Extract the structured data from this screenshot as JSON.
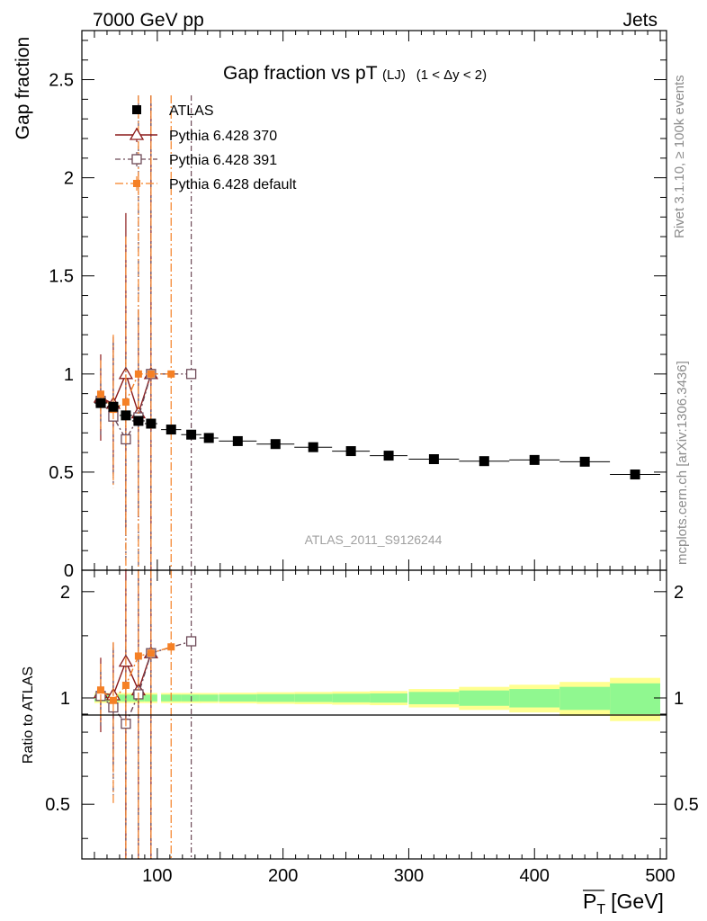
{
  "header": {
    "left": "7000 GeV pp",
    "right": "Jets"
  },
  "side_texts": {
    "rivet": "Rivet 3.1.10, ≥ 100k events",
    "mcplots": "mcplots.cern.ch [arXiv:1306.3436]"
  },
  "colors": {
    "atlas": "#000000",
    "p370": "#8b1a1a",
    "p391": "#6e4a58",
    "pdefault": "#f58025",
    "band_inner": "#90f890",
    "band_outer": "#ffff90"
  },
  "chart_data": {
    "type": "scatter",
    "title": "Gap fraction vs pT",
    "title_sub": "(LJ)",
    "title_cut": "(1 < Δy < 2)",
    "analysis_label": "ATLAS_2011_S9126244",
    "xlabel": "P_T [GeV]",
    "xlabel_main": "P",
    "xlabel_sub": "T",
    "xlabel_unit": "[GeV]",
    "ylabel": "Gap fraction",
    "ratio_ylabel": "Ratio to ATLAS",
    "xlim": [
      40,
      505
    ],
    "ylim": [
      0,
      2.75
    ],
    "ratio_ylim": [
      0.35,
      2.3
    ],
    "xticks": [
      100,
      200,
      300,
      400,
      500
    ],
    "xtick_labels": [
      "100",
      "200",
      "300",
      "400",
      "500"
    ],
    "yticks": [
      0,
      0.5,
      1,
      1.5,
      2,
      2.5
    ],
    "ytick_labels": [
      "0",
      "0.5",
      "1",
      "1.5",
      "2",
      "2.5"
    ],
    "ratio_yticks": [
      0.5,
      1,
      2
    ],
    "ratio_ytick_labels": [
      "0.5",
      "1",
      "2"
    ],
    "legend_position": "top-left",
    "legend": [
      "ATLAS",
      "Pythia 6.428 370",
      "Pythia 6.428 391",
      "Pythia 6.428 default"
    ],
    "series": [
      {
        "name": "ATLAS",
        "marker": "filled-square",
        "x": [
          55,
          65,
          75,
          85,
          95,
          111,
          127,
          141,
          164,
          194,
          224,
          254,
          284,
          320,
          360,
          400,
          440,
          480
        ],
        "xerr": [
          5,
          5,
          5,
          5,
          5,
          8,
          8,
          7.5,
          15,
          15,
          15,
          15,
          15,
          20,
          20,
          20,
          20,
          20
        ],
        "y": [
          0.852,
          0.833,
          0.789,
          0.761,
          0.747,
          0.717,
          0.691,
          0.674,
          0.658,
          0.643,
          0.627,
          0.607,
          0.584,
          0.566,
          0.556,
          0.562,
          0.553,
          0.488
        ],
        "band_inner": [
          0.022,
          0.022,
          0.022,
          0.022,
          0.022,
          0.022,
          0.022,
          0.022,
          0.023,
          0.025,
          0.026,
          0.028,
          0.03,
          0.04,
          0.05,
          0.06,
          0.075,
          0.1
        ],
        "band_outer": [
          0.033,
          0.033,
          0.033,
          0.033,
          0.033,
          0.033,
          0.033,
          0.033,
          0.035,
          0.038,
          0.04,
          0.043,
          0.046,
          0.06,
          0.075,
          0.09,
          0.11,
          0.14
        ]
      },
      {
        "name": "Pythia 6.428 370",
        "marker": "open-triangle",
        "dash": "",
        "x": [
          55,
          65,
          75,
          85,
          95
        ],
        "y": [
          0.88,
          0.848,
          1.0,
          0.8,
          1.0
        ],
        "ylo": [
          0.66,
          0.48,
          0.2,
          0.27,
          0.0
        ],
        "yhi": [
          1.1,
          1.19,
          1.82,
          1.33,
          2.42
        ]
      },
      {
        "name": "Pythia 6.428 391",
        "marker": "open-square",
        "dash": "6,3,2,3",
        "x": [
          55,
          65,
          75,
          85,
          95,
          127
        ],
        "y": [
          0.863,
          0.783,
          0.667,
          0.779,
          1.0,
          1.0
        ],
        "ylo": [
          0.69,
          0.44,
          0.05,
          0.0,
          0.0,
          0.0
        ],
        "yhi": [
          1.03,
          1.16,
          1.1,
          2.42,
          2.42,
          2.42
        ]
      },
      {
        "name": "Pythia 6.428 default",
        "marker": "filled-square-small",
        "dash": "9,3,2,3",
        "x": [
          55,
          65,
          75,
          85,
          95,
          111
        ],
        "y": [
          0.897,
          0.82,
          0.857,
          1.0,
          1.0,
          1.0
        ],
        "ylo": [
          0.72,
          0.42,
          0.0,
          0.0,
          0.0,
          0.0
        ],
        "yhi": [
          1.07,
          1.2,
          1.7,
          2.42,
          2.42,
          2.42
        ]
      }
    ],
    "ratio_series": [
      {
        "name": "Pythia 6.428 370",
        "x": [
          55,
          65,
          75,
          85,
          95
        ],
        "y": [
          1.033,
          1.018,
          1.267,
          1.051,
          1.339
        ],
        "ylo": [
          0.8,
          0.62,
          0.25,
          0.35,
          0.0
        ],
        "yhi": [
          1.3,
          1.43,
          2.35,
          2.35,
          2.35
        ]
      },
      {
        "name": "Pythia 6.428 391",
        "x": [
          55,
          65,
          75,
          85,
          95,
          127
        ],
        "y": [
          1.013,
          0.94,
          0.845,
          1.024,
          1.339,
          1.447
        ],
        "ylo": [
          0.82,
          0.53,
          0.0,
          0.0,
          0.0,
          0.0
        ],
        "yhi": [
          1.2,
          1.39,
          1.4,
          2.35,
          2.35,
          2.35
        ]
      },
      {
        "name": "Pythia 6.428 default",
        "x": [
          55,
          65,
          75,
          85,
          95,
          111
        ],
        "y": [
          1.053,
          0.984,
          1.086,
          1.314,
          1.339,
          1.395
        ],
        "ylo": [
          0.85,
          0.5,
          0.0,
          0.0,
          0.0,
          0.0
        ],
        "yhi": [
          1.25,
          1.44,
          2.15,
          2.35,
          2.35,
          2.35
        ]
      }
    ]
  }
}
